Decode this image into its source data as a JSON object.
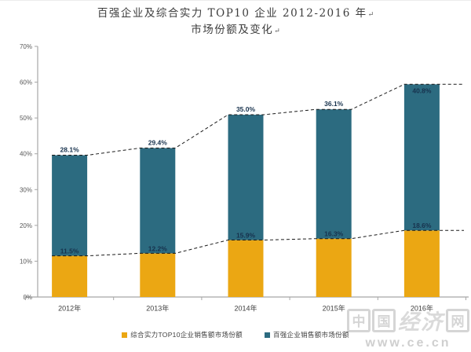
{
  "title": {
    "line1": "百强企业及综合实力 TOP10 企业 2012-2016 年",
    "line2": "市场份额及变化",
    "return_mark": "↵"
  },
  "chart_data": {
    "type": "bar",
    "stacked": true,
    "title": "百强企业及综合实力 TOP10 企业 2012-2016 年市场份额及变化",
    "categories": [
      "2012年",
      "2013年",
      "2014年",
      "2015年",
      "2016年"
    ],
    "series": [
      {
        "name": "综合实力TOP10企业销售额市场份额",
        "color": "#EBA713",
        "values": [
          11.5,
          12.2,
          15.9,
          16.3,
          18.6
        ],
        "labels": [
          "11.5%",
          "12.2%",
          "15.9%",
          "16.3%",
          "18.6%"
        ]
      },
      {
        "name": "百强企业销售额市场份额",
        "color": "#2C6B80",
        "values": [
          28.1,
          29.4,
          35.0,
          36.1,
          40.8
        ],
        "labels": [
          "28.1%",
          "29.4%",
          "35.0%",
          "36.1%",
          "40.8%"
        ]
      }
    ],
    "totals": [
      39.6,
      41.6,
      50.9,
      52.4,
      59.4
    ],
    "trend_lines": [
      {
        "follows": "stack-total",
        "style": "dashed",
        "color": "#1A1A1A"
      },
      {
        "follows": "series-0-top",
        "style": "dashed",
        "color": "#1A1A1A"
      }
    ],
    "ylim": [
      0,
      70
    ],
    "ytick_labels": [
      "0%",
      "10%",
      "20%",
      "30%",
      "40%",
      "50%",
      "60%",
      "70%"
    ],
    "grid": false,
    "legend_position": "bottom",
    "label_color": "#17324D",
    "axis_color": "#A6A6A6",
    "tick_text_color": "#595959",
    "xlabel_color": "#404040"
  },
  "watermark": {
    "chars": [
      "中",
      "国",
      "经济",
      "网"
    ],
    "text": "中国经济网",
    "url": "www.ce.cn"
  }
}
